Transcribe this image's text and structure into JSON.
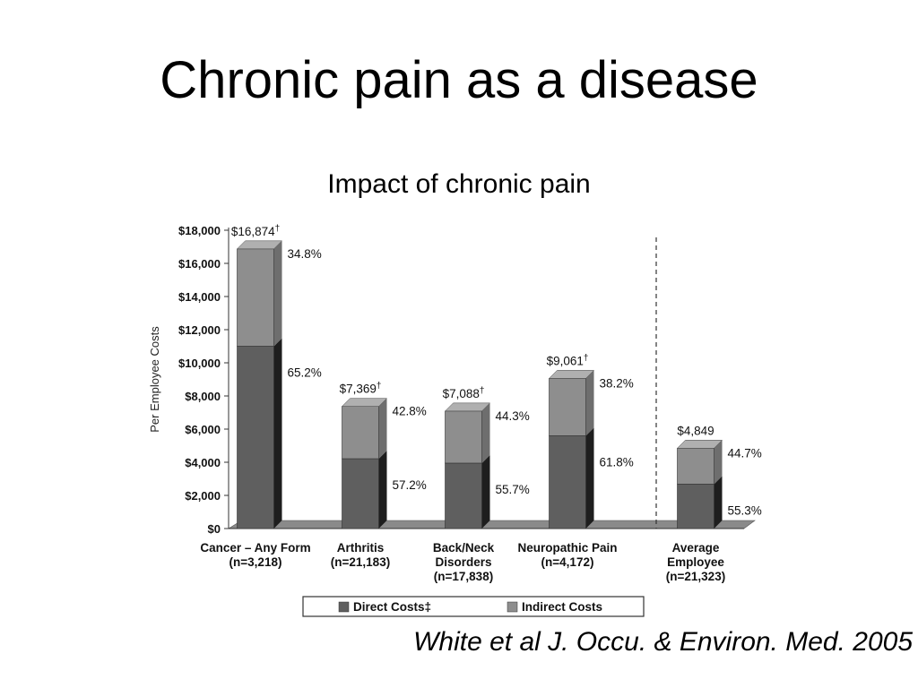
{
  "slide": {
    "title": "Chronic pain as a disease",
    "citation": "White et al J. Occu. & Environ. Med. 2005"
  },
  "chart_data": {
    "type": "bar",
    "title": "Impact of chronic pain",
    "ylabel": "Per Employee Costs",
    "xlabel": "",
    "ylim": [
      0,
      18000
    ],
    "y_ticks": [
      "$0",
      "$2,000",
      "$4,000",
      "$6,000",
      "$8,000",
      "$10,000",
      "$12,000",
      "$14,000",
      "$16,000",
      "$18,000"
    ],
    "stacked": true,
    "categories": [
      {
        "name": "Cancer – Any Form",
        "n": "(n=3,218)"
      },
      {
        "name": "Arthritis",
        "n": "(n=21,183)"
      },
      {
        "name": "Back/Neck Disorders",
        "name_lines": [
          "Back/Neck",
          "Disorders"
        ],
        "n": "(n=17,838)"
      },
      {
        "name": "Neuropathic Pain",
        "n": "(n=4,172)"
      },
      {
        "name": "Average Employee",
        "name_lines": [
          "Average",
          "Employee"
        ],
        "n": "(n=21,323)"
      }
    ],
    "totals": [
      16874,
      7369,
      7088,
      9061,
      4849
    ],
    "total_labels": [
      "$16,874",
      "$7,369",
      "$7,088",
      "$9,061",
      "$4,849"
    ],
    "total_label_marks": [
      "†",
      "†",
      "†",
      "†",
      ""
    ],
    "series": [
      {
        "name": "Direct Costs‡",
        "color": "#5f5f5f",
        "side_color": "#1e1e1e",
        "values": [
          11002,
          4215,
          3948,
          5600,
          2681
        ],
        "percent_labels": [
          "65.2%",
          "57.2%",
          "55.7%",
          "61.8%",
          "55.3%"
        ]
      },
      {
        "name": "Indirect Costs",
        "color": "#8e8e8e",
        "side_color": "#6e6e6e",
        "values": [
          5872,
          3154,
          3140,
          3461,
          2168
        ],
        "percent_labels": [
          "34.8%",
          "42.8%",
          "44.3%",
          "38.2%",
          "44.7%"
        ]
      }
    ],
    "divider": "dashed line separating Average Employee",
    "legend_position": "bottom",
    "grid": false
  }
}
